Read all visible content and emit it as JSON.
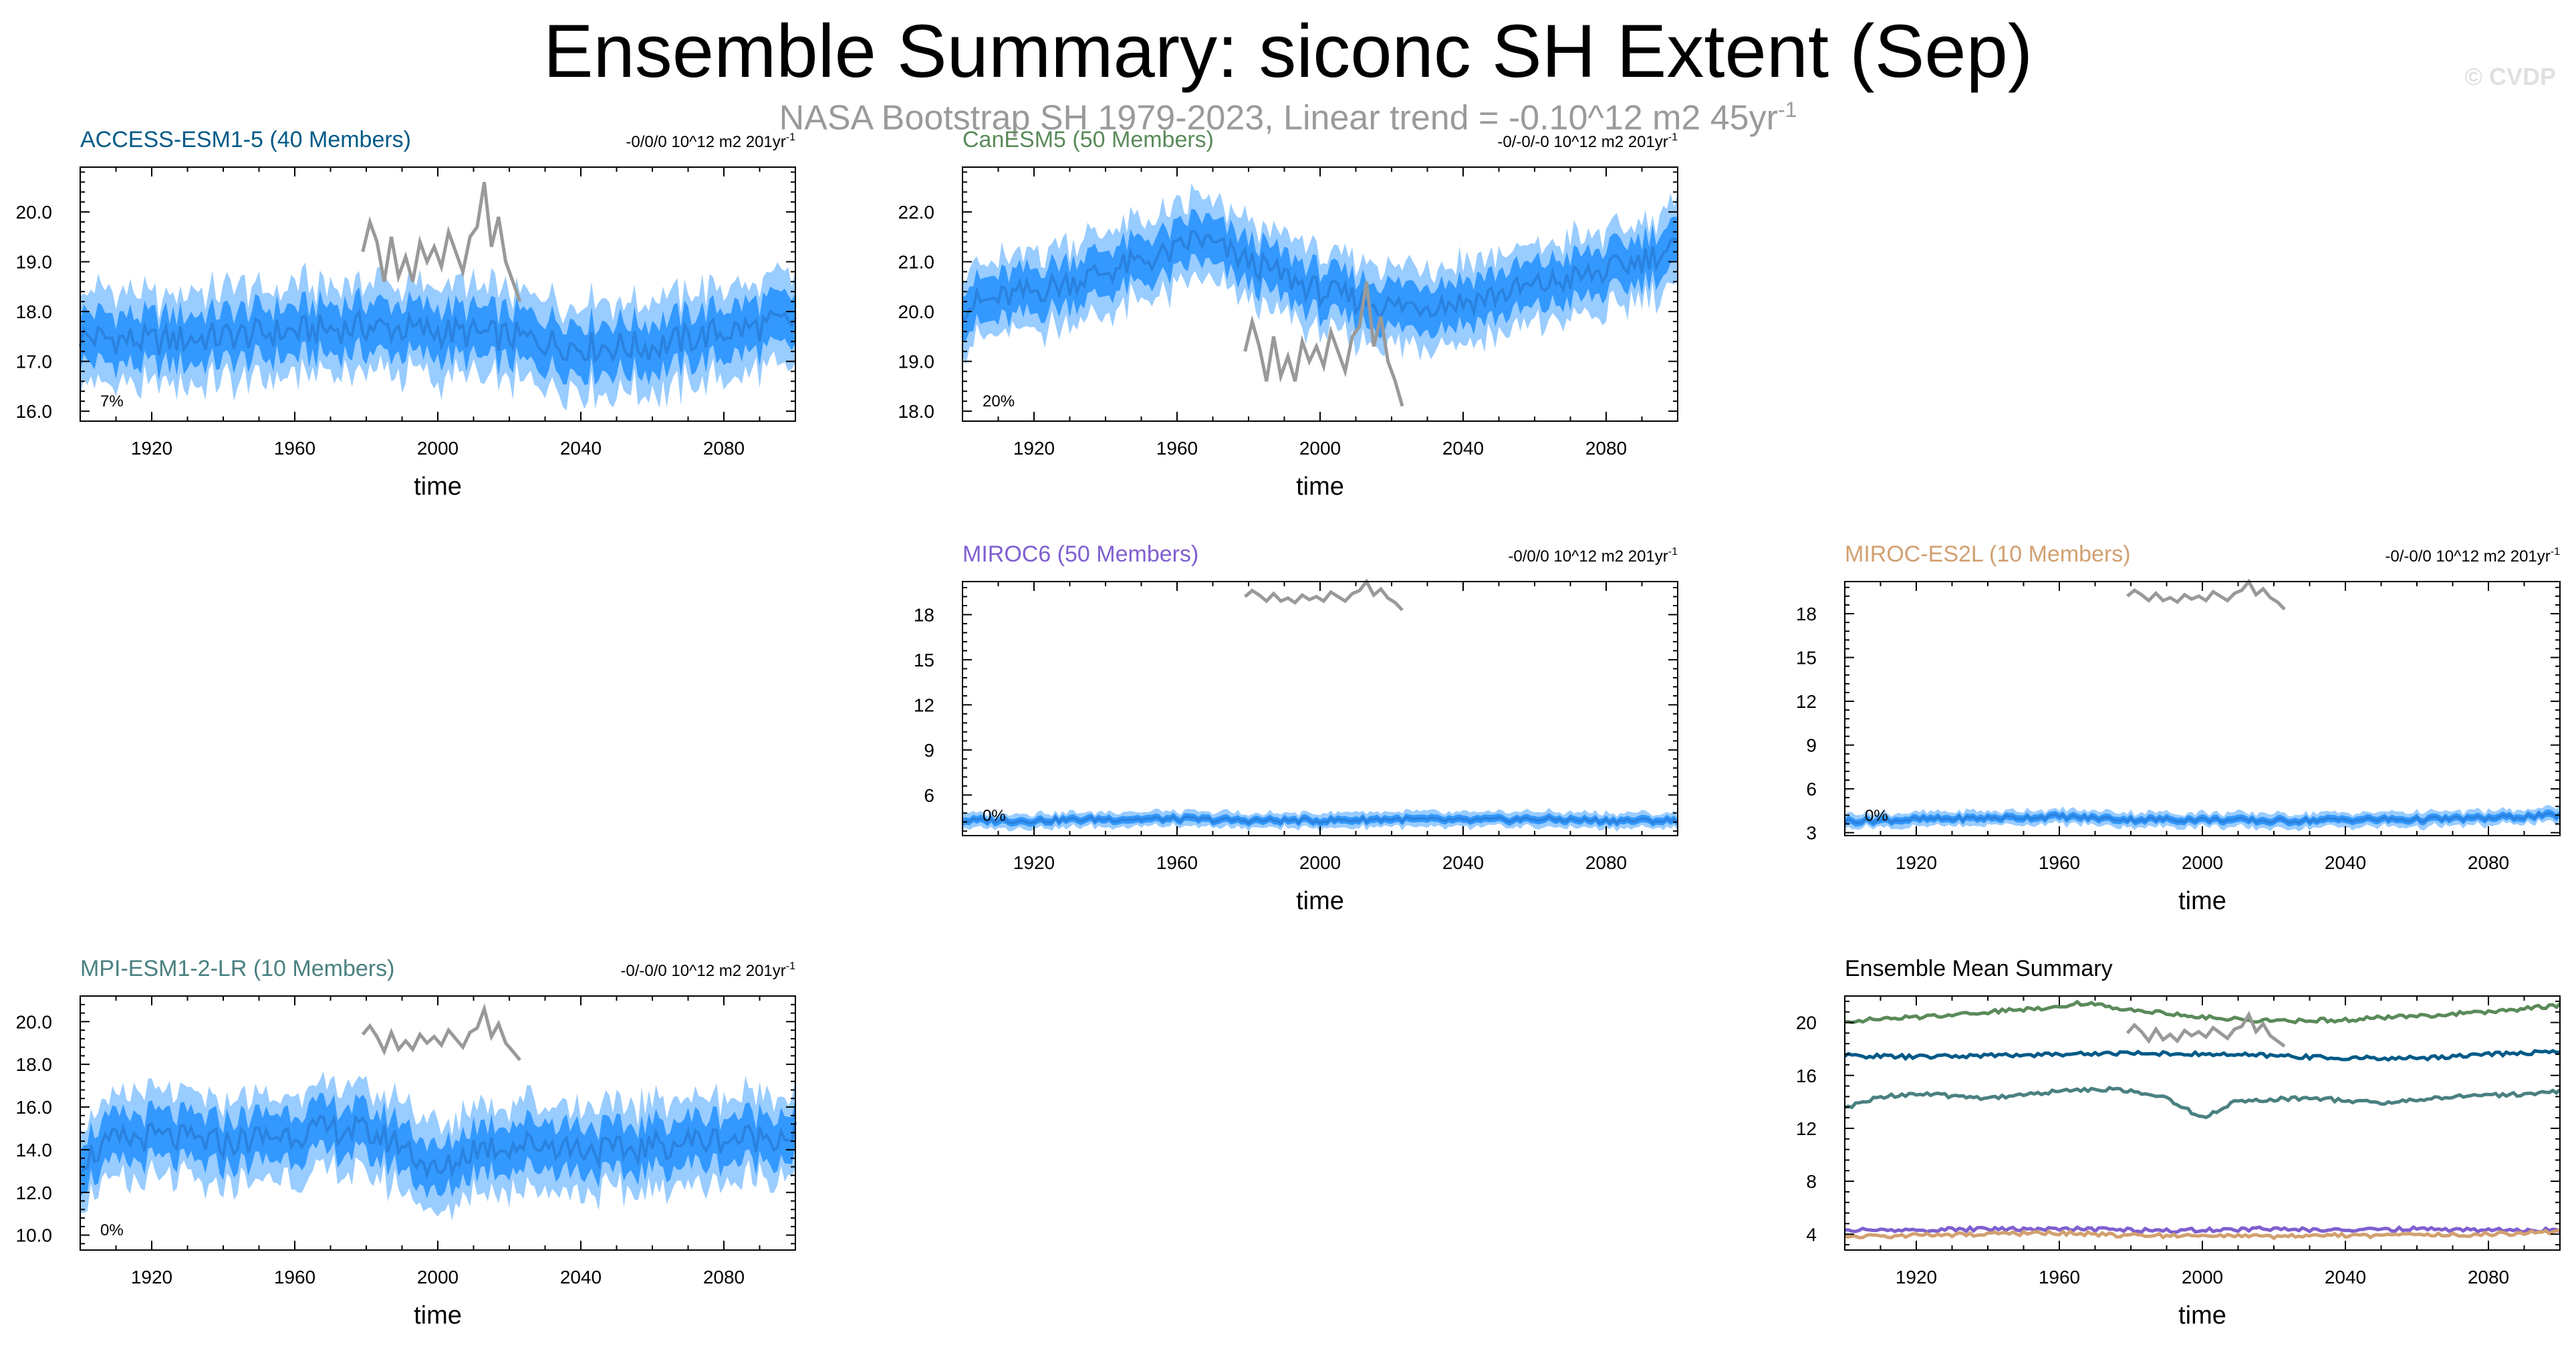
{
  "header": {
    "title": "Ensemble Summary: siconc SH Extent (Sep)",
    "subtitle": "NASA Bootstrap SH 1979-2023, Linear trend = -0.10^12 m2 45yr",
    "subtitle_sup": "-1",
    "watermark": "© CVDP"
  },
  "colors": {
    "outer_band": "#99ccff",
    "inner_band": "#3399ff",
    "ens_mean": "#2a82df",
    "obs": "#999999",
    "access": "#005a87",
    "cesm": "#5a8a5a",
    "miroc6": "#7f5fd0",
    "mirocES2L": "#d2a070",
    "mpi": "#4a8080"
  },
  "chart_data": [
    {
      "id": "access",
      "type": "area",
      "title": "ACCESS-ESM1-5 (40 Members)",
      "title_color": "#005a87",
      "trend_label": "-0/0/0 10^12 m2 201yr",
      "trend_sup": "-1",
      "xlabel": "time",
      "ylabel": "",
      "xlim": [
        1900,
        2100
      ],
      "ylim": [
        15.8,
        20.9
      ],
      "x_ticks": [
        1920,
        1960,
        2000,
        2040,
        2080
      ],
      "y_ticks": [
        16.0,
        17.0,
        18.0,
        19.0,
        20.0
      ],
      "y_tick_labels": [
        "16.0",
        "17.0",
        "18.0",
        "19.0",
        "20.0"
      ],
      "percent_label": "7%",
      "mean": {
        "x": [
          1900,
          1920,
          1940,
          1960,
          1980,
          2000,
          2020,
          2040,
          2060,
          2080,
          2100
        ],
        "y": [
          17.5,
          17.4,
          17.5,
          17.6,
          17.7,
          17.6,
          17.5,
          17.3,
          17.3,
          17.6,
          17.8
        ]
      },
      "inner_halfwidth": 0.5,
      "outer_halfwidth": 0.9,
      "obs": {
        "x": [
          1979,
          1981,
          1983,
          1985,
          1987,
          1989,
          1991,
          1993,
          1995,
          1997,
          1999,
          2001,
          2003,
          2005,
          2007,
          2009,
          2011,
          2013,
          2015,
          2017,
          2019,
          2021,
          2023
        ],
        "y": [
          19.2,
          19.8,
          19.4,
          18.6,
          19.5,
          18.7,
          19.1,
          18.6,
          19.4,
          19.0,
          19.3,
          18.9,
          19.6,
          19.2,
          18.8,
          19.5,
          19.7,
          20.6,
          19.3,
          19.9,
          19.0,
          18.6,
          18.2
        ]
      }
    },
    {
      "id": "cesm",
      "type": "area",
      "title": "CanESM5 (50 Members)",
      "title_color": "#5a8a5a",
      "trend_label": "-0/-0/-0 10^12 m2 201yr",
      "trend_sup": "-1",
      "xlabel": "time",
      "ylabel": "",
      "xlim": [
        1900,
        2100
      ],
      "ylim": [
        17.8,
        22.9
      ],
      "x_ticks": [
        1920,
        1960,
        2000,
        2040,
        2080
      ],
      "y_ticks": [
        18.0,
        19.0,
        20.0,
        21.0,
        22.0
      ],
      "y_tick_labels": [
        "18.0",
        "19.0",
        "20.0",
        "21.0",
        "22.0"
      ],
      "percent_label": "20%",
      "mean": {
        "x": [
          1900,
          1920,
          1940,
          1960,
          1965,
          1980,
          2000,
          2020,
          2040,
          2060,
          2080,
          2100
        ],
        "y": [
          20.1,
          20.4,
          20.8,
          21.2,
          21.5,
          21.0,
          20.4,
          20.1,
          20.2,
          20.5,
          20.8,
          21.3
        ]
      },
      "inner_halfwidth": 0.45,
      "outer_halfwidth": 0.8,
      "obs": {
        "x": [
          1979,
          1981,
          1983,
          1985,
          1987,
          1989,
          1991,
          1993,
          1995,
          1997,
          1999,
          2001,
          2003,
          2005,
          2007,
          2009,
          2011,
          2013,
          2015,
          2017,
          2019,
          2021,
          2023
        ],
        "y": [
          19.2,
          19.8,
          19.3,
          18.6,
          19.5,
          18.7,
          19.1,
          18.6,
          19.4,
          19.0,
          19.3,
          18.9,
          19.6,
          19.2,
          18.8,
          19.5,
          19.7,
          20.6,
          19.3,
          19.9,
          19.0,
          18.6,
          18.1
        ]
      }
    },
    {
      "id": "miroc6",
      "type": "area",
      "title": "MIROC6 (50 Members)",
      "title_color": "#7f5fd0",
      "trend_label": "-0/0/0 10^12 m2 201yr",
      "trend_sup": "-1",
      "xlabel": "time",
      "ylabel": "",
      "xlim": [
        1900,
        2100
      ],
      "ylim": [
        3.3,
        20.2
      ],
      "x_ticks": [
        1920,
        1960,
        2000,
        2040,
        2080
      ],
      "y_ticks": [
        6,
        9,
        12,
        15,
        18
      ],
      "y_tick_labels": [
        "6",
        "9",
        "12",
        "15",
        "18"
      ],
      "percent_label": "0%",
      "mean": {
        "x": [
          1900,
          1920,
          1940,
          1960,
          1980,
          2000,
          2020,
          2040,
          2060,
          2080,
          2100
        ],
        "y": [
          4.3,
          4.3,
          4.4,
          4.4,
          4.3,
          4.3,
          4.4,
          4.3,
          4.4,
          4.3,
          4.3
        ]
      },
      "inner_halfwidth": 0.25,
      "outer_halfwidth": 0.5,
      "obs": {
        "x": [
          1979,
          1981,
          1983,
          1985,
          1987,
          1989,
          1991,
          1993,
          1995,
          1997,
          1999,
          2001,
          2003,
          2005,
          2007,
          2009,
          2011,
          2013,
          2015,
          2017,
          2019,
          2021,
          2023
        ],
        "y": [
          19.2,
          19.6,
          19.3,
          18.9,
          19.4,
          18.9,
          19.1,
          18.8,
          19.3,
          19.0,
          19.2,
          18.9,
          19.5,
          19.2,
          18.9,
          19.4,
          19.6,
          20.2,
          19.3,
          19.7,
          19.1,
          18.8,
          18.3
        ]
      }
    },
    {
      "id": "mirocES2L",
      "type": "area",
      "title": "MIROC-ES2L (10 Members)",
      "title_color": "#d2a070",
      "trend_label": "-0/-0/0 10^12 m2 201yr",
      "trend_sup": "-1",
      "xlabel": "time",
      "ylabel": "",
      "xlim": [
        1900,
        2100
      ],
      "ylim": [
        2.8,
        20.2
      ],
      "x_ticks": [
        1920,
        1960,
        2000,
        2040,
        2080
      ],
      "y_ticks": [
        3,
        6,
        9,
        12,
        15,
        18
      ],
      "y_tick_labels": [
        "3",
        "6",
        "9",
        "12",
        "15",
        "18"
      ],
      "percent_label": "0%",
      "mean": {
        "x": [
          1900,
          1920,
          1940,
          1960,
          1980,
          2000,
          2020,
          2040,
          2060,
          2080,
          2100
        ],
        "y": [
          3.8,
          3.9,
          4.0,
          4.1,
          3.9,
          3.9,
          3.8,
          3.9,
          3.9,
          4.0,
          4.2
        ]
      },
      "inner_halfwidth": 0.25,
      "outer_halfwidth": 0.5,
      "obs": {
        "x": [
          1979,
          1981,
          1983,
          1985,
          1987,
          1989,
          1991,
          1993,
          1995,
          1997,
          1999,
          2001,
          2003,
          2005,
          2007,
          2009,
          2011,
          2013,
          2015,
          2017,
          2019,
          2021,
          2023
        ],
        "y": [
          19.2,
          19.6,
          19.3,
          18.9,
          19.4,
          18.9,
          19.1,
          18.8,
          19.3,
          19.0,
          19.2,
          18.9,
          19.5,
          19.2,
          18.9,
          19.4,
          19.6,
          20.2,
          19.3,
          19.7,
          19.1,
          18.8,
          18.3
        ]
      }
    },
    {
      "id": "mpi",
      "type": "area",
      "title": "MPI-ESM1-2-LR (10 Members)",
      "title_color": "#4a8080",
      "trend_label": "-0/-0/0 10^12 m2 201yr",
      "trend_sup": "-1",
      "xlabel": "time",
      "ylabel": "",
      "xlim": [
        1900,
        2100
      ],
      "ylim": [
        9.3,
        21.2
      ],
      "x_ticks": [
        1920,
        1960,
        2000,
        2040,
        2080
      ],
      "y_ticks": [
        10.0,
        12.0,
        14.0,
        16.0,
        18.0,
        20.0
      ],
      "y_tick_labels": [
        "10.0",
        "12.0",
        "14.0",
        "16.0",
        "18.0",
        "20.0"
      ],
      "percent_label": "0%",
      "mean": {
        "x": [
          1900,
          1910,
          1920,
          1940,
          1960,
          1975,
          1990,
          2000,
          2010,
          2030,
          2050,
          2070,
          2090,
          2100
        ],
        "y": [
          13.5,
          14.4,
          14.6,
          14.3,
          14.8,
          15.0,
          14.3,
          12.8,
          14.1,
          14.3,
          13.9,
          14.4,
          14.6,
          14.8
        ]
      },
      "inner_halfwidth": 1.1,
      "outer_halfwidth": 2.0,
      "obs": {
        "x": [
          1979,
          1981,
          1983,
          1985,
          1987,
          1989,
          1991,
          1993,
          1995,
          1997,
          1999,
          2001,
          2003,
          2005,
          2007,
          2009,
          2011,
          2013,
          2015,
          2017,
          2019,
          2021,
          2023
        ],
        "y": [
          19.4,
          19.8,
          19.3,
          18.6,
          19.5,
          18.7,
          19.1,
          18.7,
          19.4,
          19.0,
          19.3,
          18.9,
          19.6,
          19.2,
          18.8,
          19.5,
          19.7,
          20.6,
          19.3,
          19.9,
          19.0,
          18.6,
          18.2
        ]
      }
    },
    {
      "id": "summary",
      "type": "line",
      "title": "Ensemble Mean Summary",
      "title_color": "#000000",
      "xlabel": "time",
      "ylabel": "",
      "xlim": [
        1900,
        2100
      ],
      "ylim": [
        2.8,
        22.0
      ],
      "x_ticks": [
        1920,
        1960,
        2000,
        2040,
        2080
      ],
      "y_ticks": [
        4,
        8,
        12,
        16,
        20
      ],
      "y_tick_labels": [
        "4",
        "8",
        "12",
        "16",
        "20"
      ],
      "series": [
        {
          "name": "CanESM5",
          "color": "#5a8a5a",
          "x": [
            1900,
            1920,
            1940,
            1960,
            1965,
            1980,
            2000,
            2020,
            2040,
            2060,
            2080,
            2100
          ],
          "y": [
            20.1,
            20.4,
            20.8,
            21.2,
            21.5,
            21.0,
            20.4,
            20.1,
            20.2,
            20.5,
            20.8,
            21.3
          ]
        },
        {
          "name": "ACCESS-ESM1-5",
          "color": "#005a87",
          "x": [
            1900,
            1920,
            1940,
            1960,
            1980,
            2000,
            2020,
            2040,
            2060,
            2080,
            2100
          ],
          "y": [
            17.5,
            17.4,
            17.5,
            17.6,
            17.7,
            17.6,
            17.5,
            17.3,
            17.3,
            17.6,
            17.8
          ]
        },
        {
          "name": "MPI-ESM1-2-LR",
          "color": "#4a8080",
          "x": [
            1900,
            1910,
            1920,
            1940,
            1960,
            1975,
            1990,
            2000,
            2010,
            2030,
            2050,
            2070,
            2090,
            2100
          ],
          "y": [
            13.5,
            14.4,
            14.6,
            14.3,
            14.8,
            15.0,
            14.3,
            12.8,
            14.1,
            14.3,
            13.9,
            14.4,
            14.6,
            14.8
          ]
        },
        {
          "name": "MIROC6",
          "color": "#7f5fd0",
          "x": [
            1900,
            1920,
            1940,
            1960,
            1980,
            2000,
            2020,
            2040,
            2060,
            2080,
            2100
          ],
          "y": [
            4.3,
            4.3,
            4.4,
            4.4,
            4.3,
            4.3,
            4.4,
            4.3,
            4.4,
            4.3,
            4.3
          ]
        },
        {
          "name": "MIROC-ES2L",
          "color": "#d2a070",
          "x": [
            1900,
            1920,
            1940,
            1960,
            1980,
            2000,
            2020,
            2040,
            2060,
            2080,
            2100
          ],
          "y": [
            3.8,
            3.9,
            4.0,
            4.1,
            3.9,
            3.9,
            3.8,
            3.9,
            3.9,
            4.0,
            4.2
          ]
        },
        {
          "name": "NASA Bootstrap SH",
          "color": "#999999",
          "x": [
            1979,
            1981,
            1983,
            1985,
            1987,
            1989,
            1991,
            1993,
            1995,
            1997,
            1999,
            2001,
            2003,
            2005,
            2007,
            2009,
            2011,
            2013,
            2015,
            2017,
            2019,
            2021,
            2023
          ],
          "y": [
            19.2,
            19.8,
            19.3,
            18.6,
            19.5,
            18.7,
            19.1,
            18.6,
            19.4,
            19.0,
            19.3,
            18.9,
            19.6,
            19.2,
            18.8,
            19.5,
            19.7,
            20.6,
            19.3,
            19.9,
            19.0,
            18.6,
            18.2
          ]
        }
      ]
    }
  ]
}
